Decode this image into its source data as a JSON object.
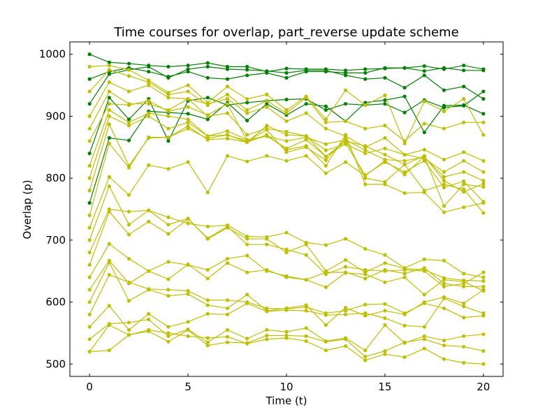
{
  "chart_data": {
    "type": "line",
    "title": "Time courses for overlap, part_reverse update scheme",
    "xlabel": "Time (t)",
    "ylabel": "Overlap (p)",
    "xlim": [
      -1,
      21
    ],
    "ylim": [
      480,
      1020
    ],
    "xticks": [
      0,
      5,
      10,
      15,
      20
    ],
    "yticks": [
      500,
      600,
      700,
      800,
      900,
      1000
    ],
    "grid": false,
    "legend": "none",
    "x": [
      0,
      1,
      2,
      3,
      4,
      5,
      6,
      7,
      8,
      9,
      10,
      11,
      12,
      13,
      14,
      15,
      16,
      17,
      18,
      19,
      20
    ],
    "colors": {
      "green": "#008000",
      "olive": "#bfbf00"
    },
    "series": [
      {
        "color": "green",
        "values": [
          1000,
          987,
          985,
          982,
          980,
          982,
          986,
          980,
          980,
          972,
          977,
          976,
          976,
          974,
          976,
          977,
          978,
          981,
          976,
          982,
          976
        ]
      },
      {
        "color": "green",
        "values": [
          960,
          972,
          978,
          972,
          964,
          972,
          962,
          960,
          966,
          970,
          962,
          972,
          972,
          970,
          970,
          978,
          978,
          973,
          978,
          974,
          974
        ]
      },
      {
        "color": "green",
        "values": [
          920,
          968,
          975,
          980,
          962,
          976,
          980,
          976,
          975,
          973,
          970,
          974,
          974,
          966,
          960,
          962,
          946,
          966,
          942,
          948,
          928
        ]
      },
      {
        "color": "green",
        "values": [
          840,
          930,
          895,
          928,
          860,
          925,
          930,
          918,
          922,
          925,
          927,
          928,
          910,
          920,
          918,
          920,
          906,
          926,
          914,
          917,
          940
        ]
      },
      {
        "color": "green",
        "values": [
          760,
          865,
          861,
          908,
          906,
          904,
          895,
          922,
          893,
          920,
          902,
          920,
          916,
          892,
          922,
          926,
          932,
          874,
          917,
          918,
          904
        ]
      },
      {
        "color": "olive",
        "values": [
          980,
          982,
          975,
          958,
          938,
          950,
          922,
          948,
          928,
          935,
          910,
          932,
          895,
          942,
          918,
          934,
          856,
          924,
          908,
          928,
          870
        ]
      },
      {
        "color": "olive",
        "values": [
          940,
          975,
          965,
          955,
          935,
          940,
          918,
          935,
          910,
          925,
          905,
          930,
          890,
          892,
          880,
          885,
          860,
          888,
          880,
          890,
          890
        ]
      },
      {
        "color": "olive",
        "values": [
          900,
          955,
          940,
          950,
          930,
          928,
          920,
          928,
          905,
          915,
          892,
          905,
          880,
          868,
          850,
          865,
          838,
          846,
          830,
          842,
          828
        ]
      },
      {
        "color": "olive",
        "values": [
          880,
          940,
          920,
          920,
          910,
          928,
          900,
          905,
          870,
          880,
          875,
          868,
          845,
          855,
          840,
          848,
          838,
          832,
          810,
          828,
          810
        ]
      },
      {
        "color": "olive",
        "values": [
          860,
          920,
          918,
          925,
          908,
          915,
          902,
          920,
          860,
          868,
          860,
          866,
          855,
          862,
          845,
          830,
          828,
          834,
          802,
          810,
          796
        ]
      },
      {
        "color": "olive",
        "values": [
          820,
          910,
          890,
          905,
          900,
          895,
          868,
          870,
          858,
          885,
          870,
          868,
          835,
          860,
          852,
          838,
          822,
          836,
          755,
          790,
          786
        ]
      },
      {
        "color": "olive",
        "values": [
          800,
          900,
          885,
          900,
          880,
          890,
          868,
          876,
          862,
          868,
          848,
          862,
          835,
          856,
          805,
          826,
          810,
          828,
          785,
          795,
          762
        ]
      },
      {
        "color": "olive",
        "values": [
          780,
          887,
          820,
          865,
          866,
          880,
          864,
          870,
          860,
          878,
          842,
          850,
          829,
          864,
          800,
          794,
          822,
          780,
          790,
          782,
          744
        ]
      },
      {
        "color": "olive",
        "values": [
          740,
          856,
          817,
          866,
          866,
          884,
          862,
          864,
          858,
          870,
          846,
          852,
          820,
          870,
          790,
          790,
          776,
          777,
          745,
          753,
          760
        ]
      },
      {
        "color": "olive",
        "values": [
          720,
          802,
          773,
          821,
          815,
          826,
          777,
          836,
          827,
          836,
          828,
          836,
          808,
          826,
          804,
          828,
          806,
          835,
          796,
          778,
          791
        ]
      },
      {
        "color": "olive",
        "values": [
          700,
          787,
          725,
          748,
          737,
          727,
          722,
          724,
          706,
          705,
          712,
          696,
          692,
          702,
          686,
          676,
          655,
          669,
          667,
          646,
          640
        ]
      },
      {
        "color": "olive",
        "values": [
          680,
          750,
          746,
          748,
          725,
          735,
          702,
          720,
          702,
          702,
          680,
          693,
          650,
          668,
          648,
          663,
          654,
          652,
          639,
          635,
          634
        ]
      },
      {
        "color": "olive",
        "values": [
          660,
          746,
          709,
          730,
          710,
          734,
          703,
          722,
          693,
          693,
          685,
          676,
          645,
          657,
          652,
          650,
          652,
          650,
          625,
          630,
          648
        ]
      },
      {
        "color": "olive",
        "values": [
          640,
          694,
          670,
          650,
          665,
          660,
          652,
          670,
          675,
          650,
          642,
          636,
          648,
          648,
          638,
          652,
          646,
          655,
          630,
          625,
          625
        ]
      },
      {
        "color": "olive",
        "values": [
          620,
          667,
          630,
          650,
          637,
          661,
          638,
          663,
          648,
          652,
          640,
          636,
          624,
          647,
          645,
          632,
          640,
          612,
          636,
          633,
          618
        ]
      },
      {
        "color": "olive",
        "values": [
          600,
          664,
          602,
          620,
          610,
          613,
          595,
          590,
          612,
          586,
          590,
          595,
          563,
          591,
          578,
          586,
          580,
          600,
          608,
          598,
          620
        ]
      },
      {
        "color": "olive",
        "values": [
          580,
          644,
          632,
          621,
          620,
          618,
          603,
          603,
          600,
          590,
          589,
          592,
          582,
          586,
          596,
          597,
          582,
          598,
          590,
          575,
          578
        ]
      },
      {
        "color": "olive",
        "values": [
          560,
          594,
          555,
          581,
          560,
          568,
          581,
          580,
          598,
          585,
          587,
          586,
          579,
          580,
          582,
          574,
          562,
          560,
          606,
          593,
          582
        ]
      },
      {
        "color": "olive",
        "values": [
          540,
          565,
          567,
          572,
          545,
          556,
          535,
          555,
          541,
          555,
          552,
          558,
          537,
          542,
          522,
          563,
          534,
          545,
          538,
          545,
          548
        ]
      },
      {
        "color": "olive",
        "values": [
          520,
          522,
          547,
          553,
          536,
          555,
          530,
          535,
          534,
          546,
          546,
          545,
          536,
          540,
          512,
          521,
          535,
          540,
          530,
          528,
          521
        ]
      },
      {
        "color": "olive",
        "values": [
          520,
          563,
          547,
          555,
          550,
          545,
          542,
          544,
          533,
          540,
          542,
          537,
          522,
          529,
          506,
          516,
          511,
          525,
          508,
          502,
          500
        ]
      }
    ]
  }
}
